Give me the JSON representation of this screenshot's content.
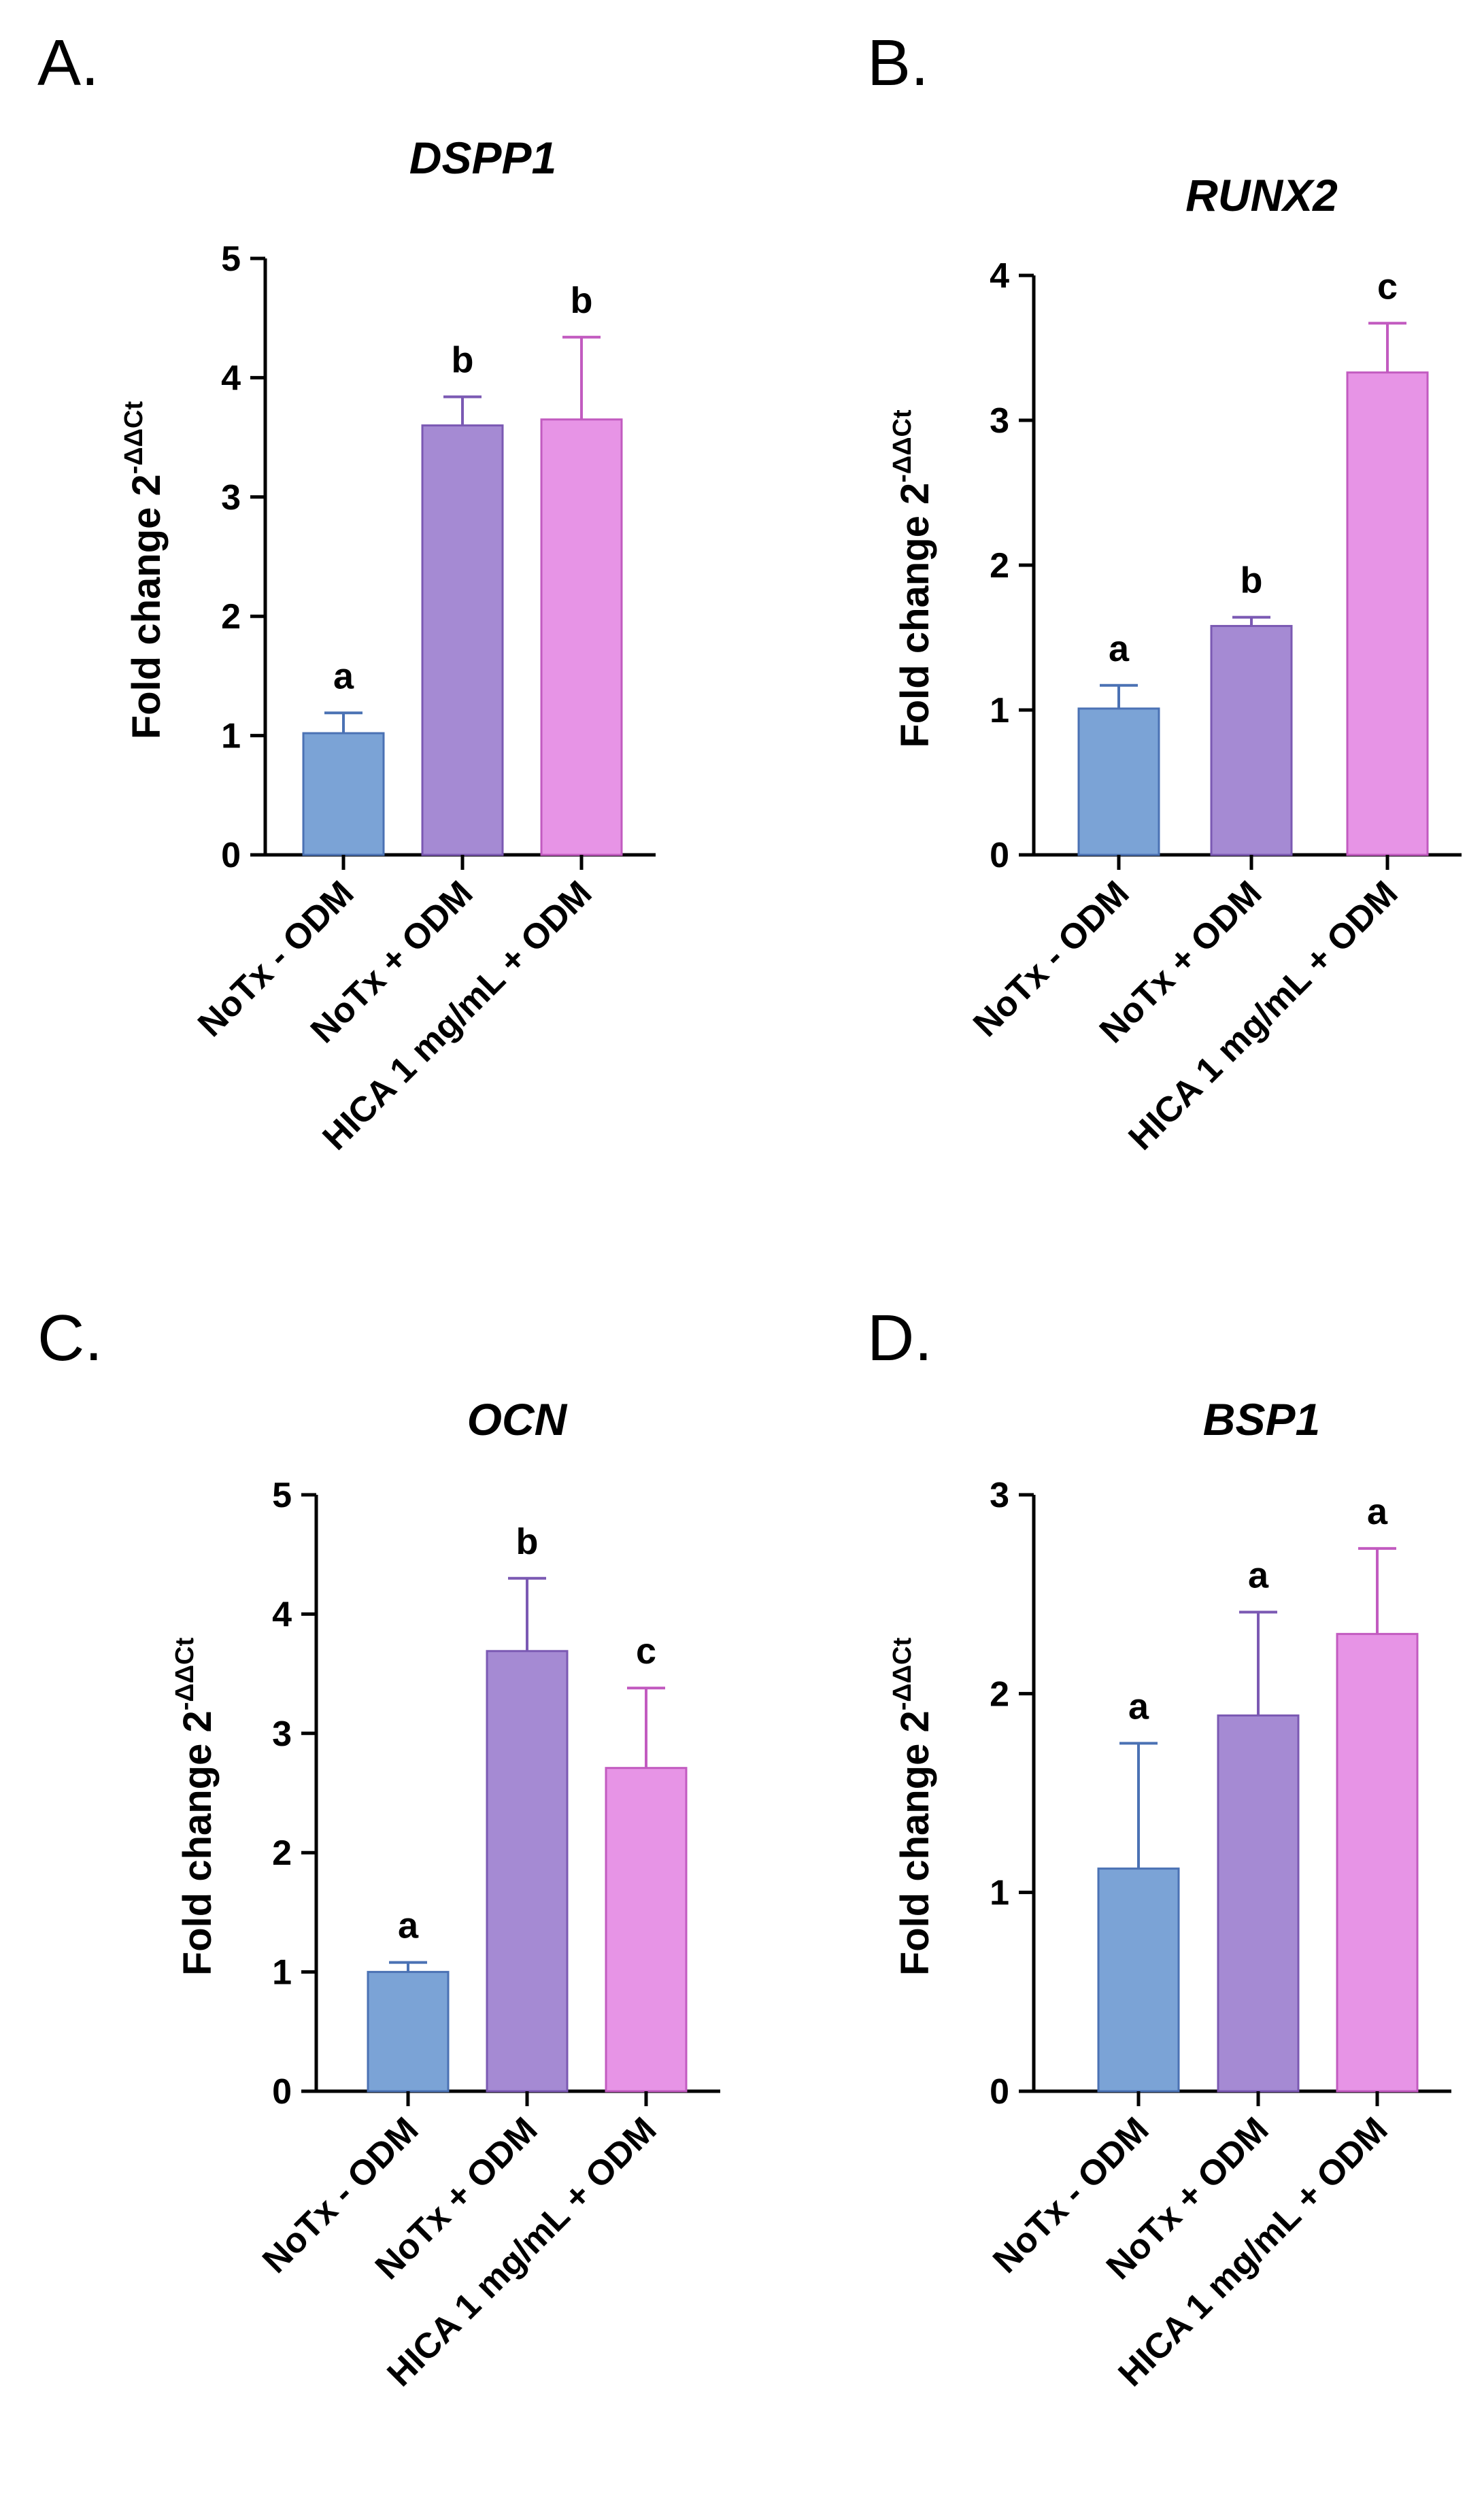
{
  "chart_data": [
    {
      "panel": "A.",
      "type": "bar",
      "title": "DSPP1",
      "ylabel": "Fold change 2",
      "ylabel_sup": "-ΔΔCt",
      "xlabel": "",
      "ylim": [
        0,
        5
      ],
      "yticks": [
        "0",
        "1",
        "2",
        "3",
        "4",
        "5"
      ],
      "categories": [
        "NoTx - ODM",
        "NoTx + ODM",
        "HICA 1 mg/mL + ODM"
      ],
      "values": [
        1.02,
        3.6,
        3.65
      ],
      "errors": [
        0.17,
        0.24,
        0.69
      ],
      "significance": [
        "a",
        "b",
        "b"
      ],
      "colors": [
        "#7ba3d6",
        "#a58ad3",
        "#e794e6"
      ],
      "edge_colors": [
        "#4b72b4",
        "#7b59b3",
        "#c25bc0"
      ]
    },
    {
      "panel": "B.",
      "type": "bar",
      "title": "RUNX2",
      "ylabel": "Fold change 2",
      "ylabel_sup": "-ΔΔCt",
      "xlabel": "",
      "ylim": [
        0,
        4
      ],
      "yticks": [
        "0",
        "1",
        "2",
        "3",
        "4"
      ],
      "categories": [
        "NoTx - ODM",
        "NoTx + ODM",
        "HICA 1 mg/mL + ODM"
      ],
      "values": [
        1.01,
        1.58,
        3.33
      ],
      "errors": [
        0.16,
        0.06,
        0.34
      ],
      "significance": [
        "a",
        "b",
        "c"
      ],
      "colors": [
        "#7ba3d6",
        "#a58ad3",
        "#e794e6"
      ],
      "edge_colors": [
        "#4b72b4",
        "#7b59b3",
        "#c25bc0"
      ]
    },
    {
      "panel": "C.",
      "type": "bar",
      "title": "OCN",
      "ylabel": "Fold change 2",
      "ylabel_sup": "-ΔΔCt",
      "xlabel": "",
      "ylim": [
        0,
        5
      ],
      "yticks": [
        "0",
        "1",
        "2",
        "3",
        "4",
        "5"
      ],
      "categories": [
        "NoTx - ODM",
        "NoTx + ODM",
        "HICA 1 mg/mL + ODM"
      ],
      "values": [
        1.0,
        3.69,
        2.71
      ],
      "errors": [
        0.08,
        0.61,
        0.67
      ],
      "significance": [
        "a",
        "b",
        "c"
      ],
      "colors": [
        "#7ba3d6",
        "#a58ad3",
        "#e794e6"
      ],
      "edge_colors": [
        "#4b72b4",
        "#7b59b3",
        "#c25bc0"
      ]
    },
    {
      "panel": "D.",
      "type": "bar",
      "title": "BSP1",
      "ylabel": "Fold change 2",
      "ylabel_sup": "-ΔΔCt",
      "xlabel": "",
      "ylim": [
        0,
        3
      ],
      "yticks": [
        "0",
        "1",
        "2",
        "3"
      ],
      "categories": [
        "NoTx - ODM",
        "NoTx + ODM",
        "HICA 1 mg/mL + ODM"
      ],
      "values": [
        1.12,
        1.89,
        2.3
      ],
      "errors": [
        0.63,
        0.52,
        0.43
      ],
      "significance": [
        "a",
        "a",
        "a"
      ],
      "colors": [
        "#7ba3d6",
        "#a58ad3",
        "#e794e6"
      ],
      "edge_colors": [
        "#4b72b4",
        "#7b59b3",
        "#c25bc0"
      ]
    }
  ]
}
